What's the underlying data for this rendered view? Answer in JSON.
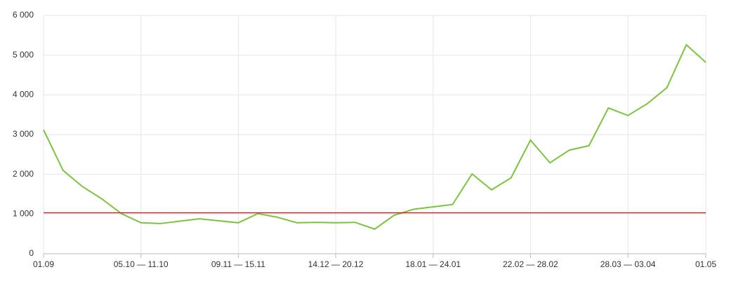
{
  "chart_data": {
    "type": "line",
    "categories": [
      "01.09",
      null,
      null,
      null,
      null,
      "05.10 — 11.10",
      null,
      null,
      null,
      null,
      "09.11 — 15.11",
      null,
      null,
      null,
      null,
      "14.12 — 20.12",
      null,
      null,
      null,
      null,
      "18.01 — 24.01",
      null,
      null,
      null,
      null,
      "22.02 — 28.02",
      null,
      null,
      null,
      null,
      "28.03 — 03.04",
      null,
      null,
      null,
      "01.05"
    ],
    "series": [
      {
        "color": "#7dc242",
        "values": [
          3120,
          2100,
          1690,
          1380,
          1010,
          780,
          760,
          820,
          880,
          830,
          780,
          1010,
          920,
          780,
          790,
          780,
          790,
          620,
          970,
          1120,
          1180,
          1240,
          2010,
          1610,
          1910,
          2860,
          2290,
          2610,
          2720,
          3670,
          3480,
          3780,
          4180,
          5260,
          4820
        ]
      }
    ],
    "reference_line": {
      "value": 1030,
      "color": "#d9121b"
    },
    "ylim": [
      0,
      6000
    ],
    "yticks": [
      0,
      {
        "value": 1000,
        "label": "1 000"
      },
      {
        "value": 2000,
        "label": "2 000"
      },
      {
        "value": 3000,
        "label": "3 000"
      },
      {
        "value": 4000,
        "label": "4 000"
      },
      {
        "value": 5000,
        "label": "5 000"
      },
      {
        "value": 6000,
        "label": "6 000"
      }
    ],
    "grid": true
  }
}
